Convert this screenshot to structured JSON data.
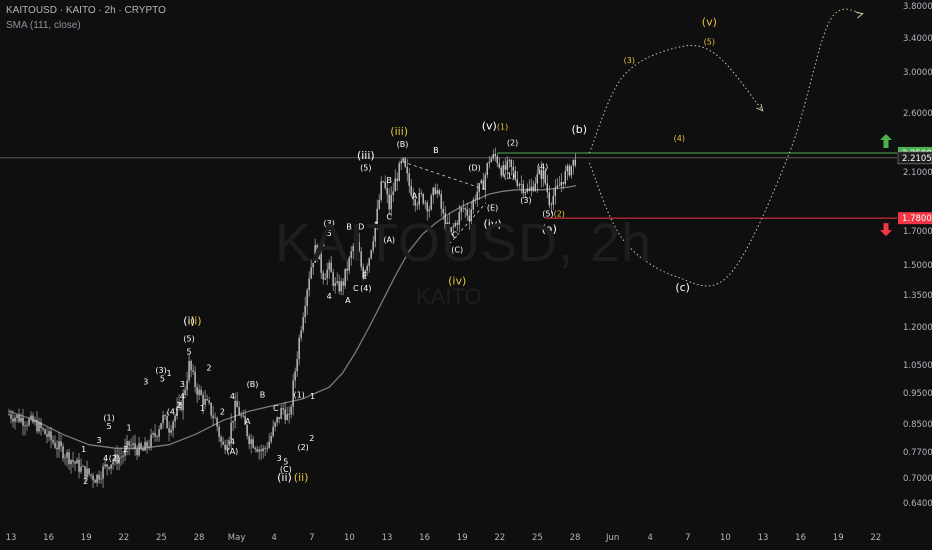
{
  "header": {
    "title": "KAITOUSD · KAITO · 2h · CRYPTO",
    "indicator": "SMA (111, close)"
  },
  "watermark": {
    "symbol": "KAITOUSD, 2h",
    "base": "KAITO"
  },
  "colors": {
    "background": "#0f0f0f",
    "candle": "#c8c8c8",
    "sma": "#7a7a7a",
    "label_white": "#ffffff",
    "label_yellow": "#e6c341",
    "green": "#4caf50",
    "red": "#f23645",
    "projection": "#c8c8a0"
  },
  "chart_data": {
    "type": "candlestick",
    "y_scale": "log",
    "y_ticks": [
      "3.8000",
      "3.4000",
      "3.0000",
      "2.6000",
      "2.1000",
      "1.7000",
      "1.5000",
      "1.3500",
      "1.2000",
      "1.0500",
      "0.9500",
      "0.8500",
      "0.7700",
      "0.7000",
      "0.6400"
    ],
    "x_ticks": [
      "13",
      "16",
      "19",
      "22",
      "25",
      "28",
      "May",
      "4",
      "7",
      "10",
      "13",
      "16",
      "19",
      "22",
      "25",
      "28",
      "Jun",
      "4",
      "7",
      "10",
      "13",
      "16",
      "19",
      "22"
    ],
    "price_labels": [
      {
        "text": "2.2500",
        "kind": "green"
      },
      {
        "text": "2.2105",
        "kind": "current"
      },
      {
        "text": "1.7800",
        "kind": "red"
      }
    ],
    "levels": [
      {
        "price": 2.25,
        "kind": "green"
      },
      {
        "price": 2.2105,
        "kind": "current"
      },
      {
        "price": 1.78,
        "kind": "red"
      }
    ],
    "path": [
      [
        0,
        0.88
      ],
      [
        4,
        0.85
      ],
      [
        7,
        0.79
      ],
      [
        11,
        0.72
      ],
      [
        13,
        0.7
      ],
      [
        15,
        0.74
      ],
      [
        17,
        0.76
      ],
      [
        18,
        0.79
      ],
      [
        20,
        0.77
      ],
      [
        22,
        0.82
      ],
      [
        23,
        0.87
      ],
      [
        24,
        0.84
      ],
      [
        26,
        0.92
      ],
      [
        27,
        1.05
      ],
      [
        28,
        0.97
      ],
      [
        29,
        0.93
      ],
      [
        30,
        0.9
      ],
      [
        31,
        0.86
      ],
      [
        32,
        0.78
      ],
      [
        33,
        0.82
      ],
      [
        34,
        0.91
      ],
      [
        35,
        0.86
      ],
      [
        36,
        0.81
      ],
      [
        37,
        0.79
      ],
      [
        38,
        0.77
      ],
      [
        39,
        0.8
      ],
      [
        40,
        0.85
      ],
      [
        41,
        0.9
      ],
      [
        42,
        0.86
      ],
      [
        43,
        1.05
      ],
      [
        44,
        1.25
      ],
      [
        45,
        1.45
      ],
      [
        46,
        1.6
      ],
      [
        47,
        1.45
      ],
      [
        48,
        1.48
      ],
      [
        49,
        1.38
      ],
      [
        50,
        1.4
      ],
      [
        51,
        1.52
      ],
      [
        52,
        1.66
      ],
      [
        53,
        1.45
      ],
      [
        54,
        1.55
      ],
      [
        55,
        1.75
      ],
      [
        56,
        2.05
      ],
      [
        57,
        1.85
      ],
      [
        58,
        2.05
      ],
      [
        59,
        2.18
      ],
      [
        60,
        2.0
      ],
      [
        61,
        1.9
      ],
      [
        62,
        1.92
      ],
      [
        63,
        1.85
      ],
      [
        64,
        2.0
      ],
      [
        65,
        1.8
      ],
      [
        66,
        1.68
      ],
      [
        67,
        1.75
      ],
      [
        68,
        1.85
      ],
      [
        69,
        1.8
      ],
      [
        70,
        1.95
      ],
      [
        71,
        2.0
      ],
      [
        72,
        2.2
      ],
      [
        73,
        2.22
      ],
      [
        74,
        2.1
      ],
      [
        75,
        2.15
      ],
      [
        76,
        2.05
      ],
      [
        77,
        2.0
      ],
      [
        78,
        1.95
      ],
      [
        79,
        2.05
      ],
      [
        80,
        2.1
      ],
      [
        81,
        1.9
      ],
      [
        82,
        1.95
      ],
      [
        83,
        2.05
      ],
      [
        84,
        2.12
      ],
      [
        85,
        2.21
      ]
    ],
    "sma": [
      [
        0,
        0.89
      ],
      [
        4,
        0.86
      ],
      [
        8,
        0.82
      ],
      [
        12,
        0.79
      ],
      [
        16,
        0.78
      ],
      [
        20,
        0.78
      ],
      [
        24,
        0.79
      ],
      [
        28,
        0.82
      ],
      [
        32,
        0.86
      ],
      [
        36,
        0.89
      ],
      [
        40,
        0.91
      ],
      [
        44,
        0.93
      ],
      [
        46,
        0.95
      ],
      [
        48,
        0.97
      ],
      [
        50,
        1.02
      ],
      [
        52,
        1.1
      ],
      [
        54,
        1.2
      ],
      [
        56,
        1.32
      ],
      [
        58,
        1.45
      ],
      [
        60,
        1.58
      ],
      [
        62,
        1.68
      ],
      [
        64,
        1.75
      ],
      [
        66,
        1.81
      ],
      [
        68,
        1.86
      ],
      [
        70,
        1.9
      ],
      [
        72,
        1.94
      ],
      [
        74,
        1.96
      ],
      [
        76,
        1.97
      ],
      [
        78,
        1.97
      ],
      [
        80,
        1.97
      ],
      [
        82,
        1.98
      ],
      [
        84,
        1.99
      ],
      [
        85,
        2.0
      ]
    ],
    "wave_labels": [
      {
        "text": "(b)",
        "color": "white",
        "x": 85.5,
        "price": 2.42
      },
      {
        "text": "(a)",
        "color": "white",
        "x": 81,
        "price": 1.69
      },
      {
        "text": "(c)",
        "color": "white",
        "x": 101,
        "price": 1.37
      },
      {
        "text": "(v)",
        "color": "yellow",
        "x": 105,
        "price": 3.55
      },
      {
        "text": "(5)",
        "color": "yellow",
        "x": 105,
        "price": 3.32
      },
      {
        "text": "(3)",
        "color": "yellow",
        "x": 93,
        "price": 3.1
      },
      {
        "text": "(4)",
        "color": "yellow",
        "x": 100.5,
        "price": 2.35
      },
      {
        "text": "(iii)",
        "color": "yellow",
        "x": 58.5,
        "price": 2.4
      },
      {
        "text": "(iii)",
        "color": "white",
        "x": 53.5,
        "price": 2.2
      },
      {
        "text": "(v)",
        "color": "white",
        "x": 72,
        "price": 2.45
      },
      {
        "text": "(1)",
        "color": "yellow",
        "x": 74,
        "price": 2.45
      },
      {
        "text": "(2)",
        "color": "white",
        "x": 75.5,
        "price": 2.31
      },
      {
        "text": "(1)",
        "color": "white",
        "x": 75,
        "price": 2.05
      },
      {
        "text": "(4)",
        "color": "white",
        "x": 80,
        "price": 2.12
      },
      {
        "text": "(3)",
        "color": "white",
        "x": 77.5,
        "price": 1.88
      },
      {
        "text": "(5)",
        "color": "white",
        "x": 80.8,
        "price": 1.79
      },
      {
        "text": "(2)",
        "color": "yellow",
        "x": 82.5,
        "price": 1.79
      },
      {
        "text": "(E)",
        "color": "white",
        "x": 72.5,
        "price": 1.83
      },
      {
        "text": "(iv)",
        "color": "white",
        "x": 72.5,
        "price": 1.72
      },
      {
        "text": "(iv)",
        "color": "yellow",
        "x": 67.2,
        "price": 1.4
      },
      {
        "text": "(C)",
        "color": "white",
        "x": 67.2,
        "price": 1.57
      },
      {
        "text": "C",
        "color": "white",
        "x": 66.8,
        "price": 1.66
      },
      {
        "text": "(D)",
        "color": "white",
        "x": 69.8,
        "price": 2.11
      },
      {
        "text": "B",
        "color": "white",
        "x": 64,
        "price": 2.25
      },
      {
        "text": "(B)",
        "color": "white",
        "x": 59,
        "price": 2.3
      },
      {
        "text": "(5)",
        "color": "white",
        "x": 53.5,
        "price": 2.11
      },
      {
        "text": "B",
        "color": "white",
        "x": 57,
        "price": 2.02
      },
      {
        "text": "A",
        "color": "white",
        "x": 60.8,
        "price": 1.91
      },
      {
        "text": "C",
        "color": "white",
        "x": 57,
        "price": 1.77
      },
      {
        "text": "(A)",
        "color": "white",
        "x": 57,
        "price": 1.63
      },
      {
        "text": "A",
        "color": "white",
        "x": 55,
        "price": 1.72
      },
      {
        "text": "(3)",
        "color": "white",
        "x": 48,
        "price": 1.73
      },
      {
        "text": "B",
        "color": "white",
        "x": 51,
        "price": 1.71
      },
      {
        "text": "D",
        "color": "white",
        "x": 52.8,
        "price": 1.71
      },
      {
        "text": "3",
        "color": "white",
        "x": 47,
        "price": 1.6
      },
      {
        "text": "5",
        "color": "white",
        "x": 48,
        "price": 1.67
      },
      {
        "text": "E",
        "color": "white",
        "x": 53.3,
        "price": 1.43
      },
      {
        "text": "C",
        "color": "white",
        "x": 52,
        "price": 1.37
      },
      {
        "text": "(4)",
        "color": "white",
        "x": 53.5,
        "price": 1.37
      },
      {
        "text": "A",
        "color": "white",
        "x": 50.8,
        "price": 1.31
      },
      {
        "text": "4",
        "color": "white",
        "x": 48,
        "price": 1.33
      },
      {
        "text": "(i)",
        "color": "white",
        "x": 27,
        "price": 1.21
      },
      {
        "text": "(i)",
        "color": "yellow",
        "x": 28,
        "price": 1.21
      },
      {
        "text": "(5)",
        "color": "white",
        "x": 27,
        "price": 1.14
      },
      {
        "text": "5",
        "color": "white",
        "x": 27,
        "price": 1.09
      },
      {
        "text": "(3)",
        "color": "white",
        "x": 22.8,
        "price": 1.02
      },
      {
        "text": "5",
        "color": "white",
        "x": 23,
        "price": 0.99
      },
      {
        "text": "3",
        "color": "white",
        "x": 20.5,
        "price": 0.98
      },
      {
        "text": "1",
        "color": "white",
        "x": 24,
        "price": 1.01
      },
      {
        "text": "3",
        "color": "white",
        "x": 26,
        "price": 0.97
      },
      {
        "text": "2",
        "color": "white",
        "x": 30,
        "price": 1.03
      },
      {
        "text": "4",
        "color": "white",
        "x": 26,
        "price": 0.93
      },
      {
        "text": "2",
        "color": "white",
        "x": 25.5,
        "price": 0.9
      },
      {
        "text": "(4)",
        "color": "white",
        "x": 24.5,
        "price": 0.88
      },
      {
        "text": "1",
        "color": "white",
        "x": 29,
        "price": 0.89
      },
      {
        "text": "4",
        "color": "white",
        "x": 33.5,
        "price": 0.93
      },
      {
        "text": "(B)",
        "color": "white",
        "x": 36.5,
        "price": 0.97
      },
      {
        "text": "B",
        "color": "white",
        "x": 38,
        "price": 0.935
      },
      {
        "text": "2",
        "color": "white",
        "x": 32,
        "price": 0.88
      },
      {
        "text": "C",
        "color": "white",
        "x": 40,
        "price": 0.89
      },
      {
        "text": "A",
        "color": "white",
        "x": 35.8,
        "price": 0.85
      },
      {
        "text": "4",
        "color": "white",
        "x": 33.5,
        "price": 0.79
      },
      {
        "text": "(A)",
        "color": "white",
        "x": 33.5,
        "price": 0.765
      },
      {
        "text": "3",
        "color": "white",
        "x": 40.5,
        "price": 0.745
      },
      {
        "text": "5",
        "color": "white",
        "x": 41.5,
        "price": 0.735
      },
      {
        "text": "(C)",
        "color": "white",
        "x": 41.5,
        "price": 0.715
      },
      {
        "text": "(ii)",
        "color": "white",
        "x": 41.3,
        "price": 0.692
      },
      {
        "text": "(ii)",
        "color": "yellow",
        "x": 43.8,
        "price": 0.692
      },
      {
        "text": "(2)",
        "color": "white",
        "x": 44.1,
        "price": 0.775
      },
      {
        "text": "2",
        "color": "white",
        "x": 45.4,
        "price": 0.8
      },
      {
        "text": "(1)",
        "color": "white",
        "x": 43.5,
        "price": 0.935
      },
      {
        "text": "1",
        "color": "white",
        "x": 45.5,
        "price": 0.93
      },
      {
        "text": "(1)",
        "color": "white",
        "x": 15,
        "price": 0.86
      },
      {
        "text": "5",
        "color": "white",
        "x": 15,
        "price": 0.835
      },
      {
        "text": "3",
        "color": "white",
        "x": 13.5,
        "price": 0.795
      },
      {
        "text": "4",
        "color": "white",
        "x": 14.5,
        "price": 0.745
      },
      {
        "text": "(2)",
        "color": "white",
        "x": 15.8,
        "price": 0.745
      },
      {
        "text": "1",
        "color": "white",
        "x": 11.2,
        "price": 0.77
      },
      {
        "text": "2",
        "color": "white",
        "x": 11.5,
        "price": 0.685
      },
      {
        "text": "1",
        "color": "white",
        "x": 18,
        "price": 0.83
      },
      {
        "text": "2",
        "color": "white",
        "x": 17.5,
        "price": 0.77
      }
    ],
    "projections": [
      {
        "kind": "curve",
        "points": [
          [
            87,
            2.25
          ],
          [
            92,
            2.95
          ],
          [
            100,
            3.28
          ],
          [
            106,
            3.2
          ],
          [
            113,
            2.62
          ]
        ],
        "arrow": true
      },
      {
        "kind": "curve",
        "points": [
          [
            87,
            2.17
          ],
          [
            92,
            1.65
          ],
          [
            100,
            1.44
          ],
          [
            108,
            1.45
          ],
          [
            117,
            2.25
          ],
          [
            123,
            3.6
          ],
          [
            128,
            3.7
          ]
        ],
        "arrow": true
      }
    ],
    "dashed_lines": [
      [
        [
          59,
          2.18
        ],
        [
          71.5,
          1.97
        ]
      ],
      [
        [
          66,
          1.62
        ],
        [
          71.5,
          1.88
        ]
      ]
    ]
  }
}
